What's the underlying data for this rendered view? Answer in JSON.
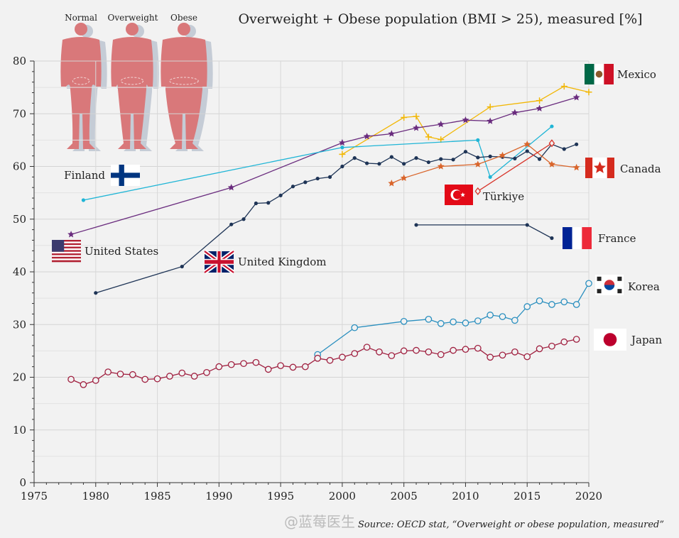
{
  "title": "Overweight + Obese population (BMI > 25), measured [%]",
  "source": "Source: OECD stat, “Overweight or obese population, measured”",
  "watermark": "@蓝莓医生",
  "figures": [
    "Normal",
    "Overweight",
    "Obese"
  ],
  "chart_data": {
    "type": "line",
    "xlim": [
      1975,
      2020
    ],
    "ylim": [
      0,
      80
    ],
    "xticks": [
      1975,
      1980,
      1985,
      1990,
      1995,
      2000,
      2005,
      2010,
      2015,
      2020
    ],
    "yticks": [
      0,
      10,
      20,
      30,
      40,
      50,
      60,
      70,
      80
    ],
    "grid": true,
    "series": [
      {
        "name": "Mexico",
        "color": "#f2b705",
        "marker": "plus",
        "x": [
          2000,
          2005,
          2006,
          2007,
          2008,
          2012,
          2016,
          2018,
          2020
        ],
        "y": [
          62.3,
          69.3,
          69.5,
          65.6,
          65.1,
          71.3,
          72.5,
          75.2,
          74.1
        ]
      },
      {
        "name": "United States",
        "color": "#6a2c7e",
        "marker": "star",
        "x": [
          1978,
          1991,
          2000,
          2002,
          2004,
          2006,
          2008,
          2010,
          2012,
          2014,
          2016,
          2019
        ],
        "y": [
          47.1,
          56.0,
          64.5,
          65.7,
          66.2,
          67.3,
          68.0,
          68.8,
          68.6,
          70.2,
          71.0,
          73.1
        ]
      },
      {
        "name": "Finland",
        "color": "#1fb5d6",
        "marker": "dot",
        "x": [
          1979,
          2000,
          2011,
          2012,
          2017
        ],
        "y": [
          53.6,
          63.6,
          65.0,
          58.0,
          67.6
        ]
      },
      {
        "name": "United Kingdom",
        "color": "#1e3456",
        "marker": "dot",
        "x": [
          1980,
          1987,
          1991,
          1992,
          1993,
          1994,
          1995,
          1996,
          1997,
          1998,
          1999,
          2000,
          2001,
          2002,
          2003,
          2004,
          2005,
          2006,
          2007,
          2008,
          2009,
          2010,
          2011,
          2012,
          2013,
          2014,
          2015,
          2016,
          2017,
          2018,
          2019
        ],
        "y": [
          36.0,
          41.0,
          49.0,
          50.0,
          53.0,
          53.1,
          54.5,
          56.2,
          57.0,
          57.7,
          58.0,
          60.0,
          61.6,
          60.6,
          60.5,
          61.8,
          60.5,
          61.6,
          60.8,
          61.4,
          61.3,
          62.8,
          61.7,
          61.9,
          61.8,
          61.5,
          62.9,
          61.4,
          64.2,
          63.3,
          64.2
        ]
      },
      {
        "name": "France",
        "color": "#1e3456",
        "marker": "dot",
        "x": [
          2006,
          2015,
          2017
        ],
        "y": [
          48.9,
          48.9,
          46.4
        ]
      },
      {
        "name": "Canada",
        "color": "#d9652b",
        "marker": "star",
        "x": [
          2004,
          2005,
          2008,
          2011,
          2013,
          2015,
          2017,
          2019
        ],
        "y": [
          56.8,
          57.8,
          60.0,
          60.4,
          62.1,
          64.2,
          60.4,
          59.8
        ]
      },
      {
        "name": "Türkiye",
        "color": "#d8342a",
        "marker": "diamond",
        "x": [
          2011,
          2017
        ],
        "y": [
          55.3,
          64.4
        ]
      },
      {
        "name": "Korea",
        "color": "#2a8fbf",
        "marker": "circle",
        "x": [
          1998,
          2001,
          2005,
          2007,
          2008,
          2009,
          2010,
          2011,
          2012,
          2013,
          2014,
          2015,
          2016,
          2017,
          2018,
          2019,
          2020
        ],
        "y": [
          24.3,
          29.4,
          30.6,
          31.0,
          30.2,
          30.5,
          30.3,
          30.7,
          31.8,
          31.5,
          30.8,
          33.4,
          34.5,
          33.8,
          34.3,
          33.8,
          37.8
        ]
      },
      {
        "name": "Japan",
        "color": "#a02040",
        "marker": "circle",
        "x": [
          1978,
          1979,
          1980,
          1981,
          1982,
          1983,
          1984,
          1985,
          1986,
          1987,
          1988,
          1989,
          1990,
          1991,
          1992,
          1993,
          1994,
          1995,
          1996,
          1997,
          1998,
          1999,
          2000,
          2001,
          2002,
          2003,
          2004,
          2005,
          2006,
          2007,
          2008,
          2009,
          2010,
          2011,
          2012,
          2013,
          2014,
          2015,
          2016,
          2017,
          2018,
          2019
        ],
        "y": [
          19.6,
          18.6,
          19.4,
          21.0,
          20.6,
          20.5,
          19.6,
          19.7,
          20.2,
          20.8,
          20.2,
          20.9,
          22.0,
          22.4,
          22.6,
          22.8,
          21.5,
          22.2,
          21.9,
          22.0,
          23.6,
          23.2,
          23.8,
          24.5,
          25.7,
          24.8,
          24.1,
          25.0,
          25.1,
          24.8,
          24.3,
          25.1,
          25.3,
          25.5,
          23.8,
          24.2,
          24.8,
          23.9,
          25.4,
          25.9,
          26.7,
          27.2
        ]
      }
    ],
    "country_labels": [
      {
        "name": "Mexico",
        "flag": "mexico"
      },
      {
        "name": "Canada",
        "flag": "canada"
      },
      {
        "name": "Finland",
        "flag": "finland"
      },
      {
        "name": "Türkiye",
        "flag": "turkey"
      },
      {
        "name": "France",
        "flag": "france"
      },
      {
        "name": "United States",
        "flag": "usa"
      },
      {
        "name": "United Kingdom",
        "flag": "uk"
      },
      {
        "name": "Korea",
        "flag": "korea"
      },
      {
        "name": "Japan",
        "flag": "japan"
      }
    ]
  }
}
